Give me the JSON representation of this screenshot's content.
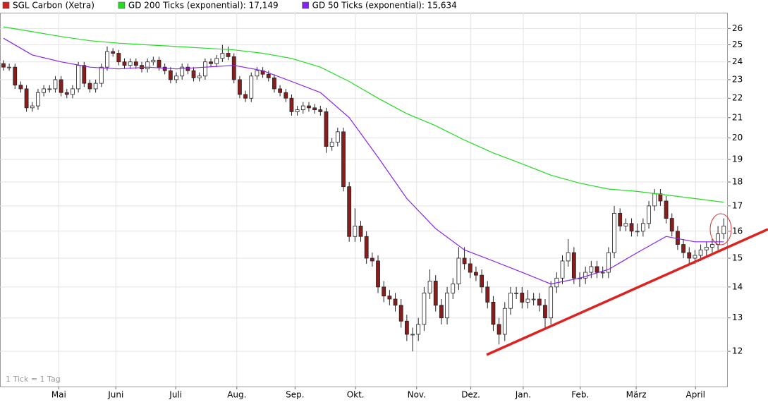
{
  "chart_data": {
    "type": "candlestick",
    "log_scale": true,
    "grid": true,
    "ylim": [
      11.03,
      27.0
    ],
    "yticks": [
      12,
      13,
      14,
      15,
      16,
      17,
      18,
      19,
      20,
      21,
      22,
      23,
      24,
      25,
      26
    ],
    "xlim": [
      -0.6,
      125.7
    ],
    "xticks": [
      {
        "value": 9.6,
        "label": "Mai"
      },
      {
        "value": 19.5,
        "label": "Juni"
      },
      {
        "value": 29.9,
        "label": "Juli"
      },
      {
        "value": 40.5,
        "label": "Aug."
      },
      {
        "value": 50.6,
        "label": "Sep."
      },
      {
        "value": 61.1,
        "label": "Okt."
      },
      {
        "value": 71.7,
        "label": "Nov."
      },
      {
        "value": 81.1,
        "label": "Dez."
      },
      {
        "value": 90.2,
        "label": "Jan."
      },
      {
        "value": 100.1,
        "label": "Feb."
      },
      {
        "value": 109.8,
        "label": "März"
      },
      {
        "value": 120.1,
        "label": "April"
      }
    ],
    "footnote": "1 Tick = 1 Tag",
    "series": [
      {
        "name": "SGL Carbon (Xetra)",
        "color": "#cc2222",
        "up_color": "#ffffff",
        "down_color": "#8b1c1c",
        "open": [
          23.9,
          23.7,
          23.7,
          22.7,
          22.5,
          21.5,
          21.6,
          22.3,
          22.5,
          22.5,
          23.0,
          22.3,
          22.2,
          22.5,
          23.8,
          22.8,
          22.5,
          22.8,
          23.7,
          24.6,
          24.5,
          24.0,
          23.8,
          24.0,
          23.8,
          23.6,
          24.0,
          24.1,
          23.7,
          23.5,
          23.0,
          23.2,
          23.7,
          23.5,
          23.1,
          23.2,
          24.0,
          23.9,
          24.2,
          24.5,
          24.3,
          23.0,
          22.2,
          22.0,
          23.2,
          23.5,
          23.3,
          23.1,
          22.5,
          22.3,
          22.0,
          21.3,
          21.4,
          21.6,
          21.5,
          21.4,
          21.3,
          19.6,
          19.8,
          20.3,
          17.8,
          15.8,
          16.2,
          15.8,
          15.0,
          14.9,
          14.0,
          13.7,
          13.6,
          13.4,
          12.9,
          12.5,
          12.5,
          12.8,
          13.8,
          14.2,
          13.4,
          13.0,
          13.8,
          14.1,
          15.0,
          14.8,
          14.5,
          14.4,
          14.0,
          13.5,
          12.8,
          12.5,
          13.3,
          13.8,
          13.8,
          13.5,
          13.6,
          13.6,
          13.4,
          13.0,
          14.0,
          14.3,
          14.9,
          15.2,
          14.3,
          14.3,
          14.5,
          14.7,
          14.5,
          14.5,
          15.2,
          16.7,
          16.2,
          16.3,
          16.0,
          16.0,
          16.3,
          17.0,
          17.5,
          17.2,
          16.5,
          16.0,
          15.5,
          15.2,
          15.0,
          15.1,
          15.3,
          15.4,
          15.5,
          15.9
        ],
        "high": [
          24.1,
          23.9,
          23.9,
          22.9,
          22.7,
          21.8,
          22.5,
          22.7,
          22.7,
          23.2,
          23.2,
          22.5,
          22.7,
          24.0,
          24.0,
          23.0,
          23.0,
          23.9,
          24.9,
          24.8,
          24.7,
          24.2,
          24.2,
          24.2,
          24.0,
          24.2,
          24.3,
          24.3,
          23.9,
          23.7,
          23.4,
          23.9,
          23.9,
          23.7,
          23.4,
          24.2,
          24.2,
          24.4,
          25.0,
          24.9,
          24.5,
          23.2,
          22.4,
          23.4,
          23.7,
          23.7,
          23.5,
          23.3,
          22.7,
          22.5,
          22.2,
          21.6,
          21.8,
          21.8,
          21.7,
          21.6,
          21.5,
          20.0,
          20.5,
          20.5,
          18.0,
          16.9,
          16.4,
          16.0,
          15.2,
          15.1,
          14.2,
          13.9,
          13.8,
          13.6,
          13.1,
          12.7,
          13.0,
          14.0,
          14.6,
          14.4,
          13.6,
          14.0,
          14.3,
          15.4,
          15.4,
          15.0,
          14.7,
          14.6,
          14.2,
          13.7,
          13.0,
          13.5,
          14.0,
          14.0,
          14.0,
          13.9,
          13.8,
          13.8,
          13.6,
          14.2,
          14.5,
          15.1,
          15.7,
          15.4,
          14.5,
          14.7,
          14.9,
          14.9,
          14.7,
          15.4,
          17.0,
          16.9,
          16.5,
          16.5,
          16.3,
          16.5,
          17.2,
          17.7,
          17.7,
          17.4,
          16.7,
          16.2,
          15.7,
          15.4,
          15.3,
          15.5,
          15.6,
          15.7,
          16.2,
          16.5
        ],
        "low": [
          23.5,
          23.5,
          22.5,
          22.3,
          21.3,
          21.3,
          21.4,
          22.1,
          22.3,
          22.3,
          22.1,
          22.0,
          22.0,
          22.3,
          22.6,
          22.3,
          22.3,
          22.6,
          23.5,
          24.3,
          23.8,
          23.6,
          23.6,
          23.6,
          23.4,
          23.4,
          23.8,
          23.5,
          23.3,
          22.8,
          22.8,
          23.0,
          23.3,
          22.9,
          22.9,
          23.0,
          23.7,
          23.7,
          24.0,
          24.1,
          22.8,
          22.0,
          21.8,
          21.8,
          23.0,
          23.1,
          22.9,
          22.3,
          22.1,
          21.8,
          21.1,
          21.1,
          21.2,
          21.3,
          21.2,
          21.1,
          19.3,
          19.4,
          19.6,
          17.6,
          15.6,
          15.6,
          15.6,
          14.8,
          14.7,
          13.8,
          13.5,
          13.4,
          13.2,
          12.7,
          12.3,
          12.0,
          12.3,
          12.6,
          13.6,
          13.2,
          12.8,
          12.8,
          13.6,
          13.9,
          14.6,
          14.3,
          14.2,
          13.8,
          13.3,
          12.6,
          12.2,
          12.3,
          13.1,
          13.6,
          13.3,
          13.3,
          13.4,
          13.2,
          12.7,
          12.8,
          13.8,
          14.1,
          14.7,
          14.1,
          14.0,
          14.1,
          14.3,
          14.3,
          14.3,
          14.3,
          15.0,
          16.0,
          16.0,
          15.8,
          15.8,
          15.8,
          16.1,
          16.8,
          17.0,
          16.3,
          15.8,
          15.3,
          15.0,
          14.8,
          14.8,
          14.9,
          15.1,
          15.2,
          15.3,
          15.7
        ],
        "close": [
          23.7,
          23.7,
          22.7,
          22.5,
          21.5,
          21.6,
          22.3,
          22.5,
          22.5,
          23.0,
          22.3,
          22.2,
          22.5,
          23.8,
          22.8,
          22.5,
          22.8,
          23.7,
          24.6,
          24.5,
          24.0,
          23.8,
          24.0,
          23.8,
          23.6,
          24.0,
          24.1,
          23.7,
          23.5,
          23.0,
          23.2,
          23.7,
          23.5,
          23.1,
          23.2,
          24.0,
          23.9,
          24.2,
          24.5,
          24.3,
          23.0,
          22.2,
          22.0,
          23.2,
          23.5,
          23.3,
          23.1,
          22.5,
          22.3,
          22.0,
          21.3,
          21.4,
          21.6,
          21.5,
          21.4,
          21.3,
          19.6,
          19.8,
          20.3,
          17.8,
          15.8,
          16.2,
          15.8,
          15.0,
          14.9,
          14.0,
          13.7,
          13.6,
          13.4,
          12.9,
          12.5,
          12.5,
          12.8,
          13.8,
          14.2,
          13.4,
          13.0,
          13.8,
          14.1,
          15.0,
          14.8,
          14.5,
          14.4,
          14.0,
          13.5,
          12.8,
          12.5,
          13.3,
          13.8,
          13.8,
          13.5,
          13.6,
          13.6,
          13.4,
          13.0,
          14.0,
          14.3,
          14.9,
          15.2,
          14.3,
          14.3,
          14.5,
          14.7,
          14.5,
          14.5,
          15.2,
          16.7,
          16.2,
          16.3,
          16.0,
          16.0,
          16.3,
          17.0,
          17.5,
          17.2,
          16.5,
          16.0,
          15.5,
          15.2,
          15.0,
          15.1,
          15.3,
          15.4,
          15.5,
          15.9,
          16.2
        ]
      },
      {
        "name": "GD 200 Ticks (exponential): 17,149",
        "color": "#22dd22",
        "x": [
          0,
          5,
          10,
          15,
          20,
          25,
          30,
          35,
          40,
          45,
          50,
          55,
          60,
          65,
          70,
          75,
          80,
          85,
          90,
          95,
          100,
          105,
          110,
          115,
          120,
          125
        ],
        "values": [
          26.1,
          25.8,
          25.5,
          25.25,
          25.1,
          25.0,
          24.9,
          24.8,
          24.7,
          24.5,
          24.2,
          23.7,
          22.9,
          22.0,
          21.2,
          20.6,
          19.9,
          19.3,
          18.8,
          18.3,
          17.95,
          17.7,
          17.6,
          17.45,
          17.3,
          17.15
        ]
      },
      {
        "name": "GD 50 Ticks (exponential): 15,634",
        "color": "#8822ee",
        "x": [
          0,
          5,
          10,
          15,
          20,
          25,
          30,
          35,
          40,
          45,
          50,
          55,
          60,
          65,
          70,
          75,
          80,
          85,
          90,
          95,
          100,
          105,
          110,
          115,
          120,
          125
        ],
        "values": [
          25.4,
          24.4,
          24.0,
          23.7,
          23.6,
          23.7,
          23.6,
          23.7,
          23.8,
          23.5,
          22.9,
          22.3,
          21.0,
          19.1,
          17.3,
          16.1,
          15.3,
          14.9,
          14.5,
          14.1,
          14.3,
          14.6,
          15.2,
          15.8,
          15.6,
          15.6
        ]
      }
    ]
  }
}
